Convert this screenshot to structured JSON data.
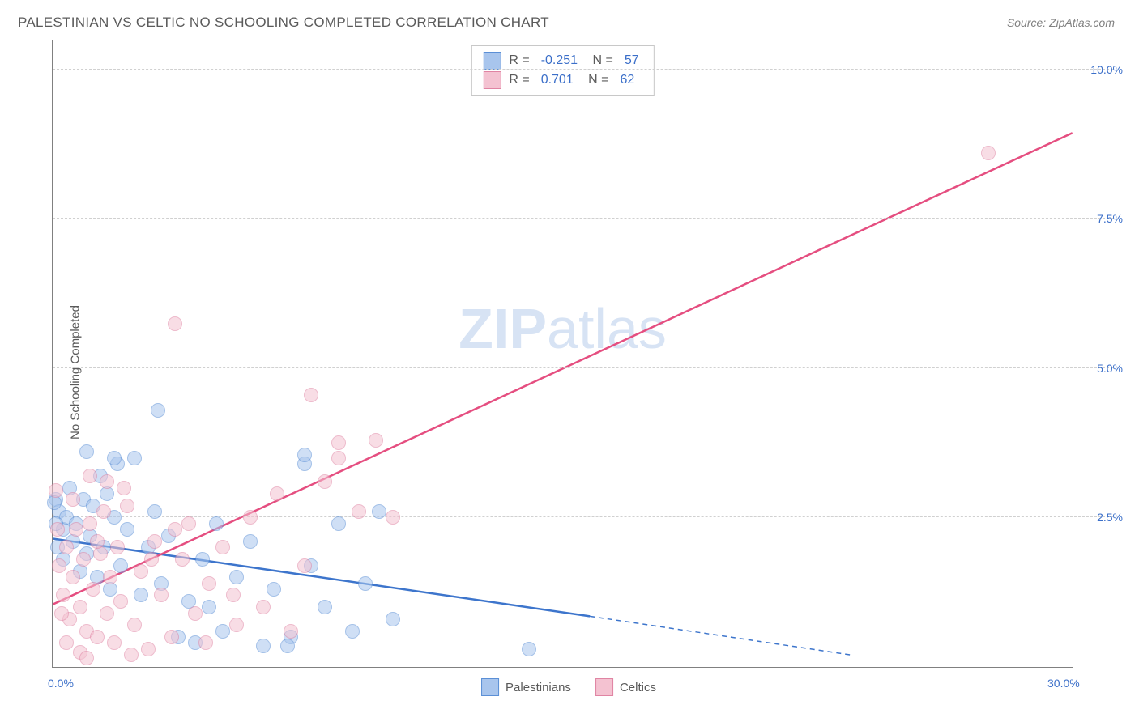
{
  "title": "PALESTINIAN VS CELTIC NO SCHOOLING COMPLETED CORRELATION CHART",
  "source": "Source: ZipAtlas.com",
  "watermark_zip": "ZIP",
  "watermark_atlas": "atlas",
  "chart": {
    "type": "scatter",
    "ylabel": "No Schooling Completed",
    "xlim": [
      0,
      30
    ],
    "ylim": [
      0,
      10.5
    ],
    "y_gridlines": [
      2.5,
      5.0,
      7.5,
      10.0
    ],
    "y_tick_labels": [
      "2.5%",
      "5.0%",
      "7.5%",
      "10.0%"
    ],
    "x_tick_values": [
      0,
      30
    ],
    "x_tick_labels": [
      "0.0%",
      "30.0%"
    ],
    "grid_color": "#d0d0d0",
    "axis_color": "#808080",
    "background_color": "#ffffff",
    "point_radius": 9,
    "point_opacity": 0.55,
    "series": [
      {
        "name": "Palestinians",
        "color_fill": "#a8c5ed",
        "color_stroke": "#5b8fd6",
        "R": "-0.251",
        "N": "57",
        "trend": {
          "x1": 0,
          "y1": 2.15,
          "x2": 15.8,
          "y2": 0.85,
          "dash_x2": 23.5,
          "dash_y2": 0.2,
          "color": "#3d75cc",
          "width": 2.5
        },
        "points": [
          [
            0.1,
            2.8
          ],
          [
            0.2,
            2.6
          ],
          [
            0.3,
            2.3
          ],
          [
            0.15,
            2.0
          ],
          [
            0.4,
            2.5
          ],
          [
            0.5,
            3.0
          ],
          [
            0.3,
            1.8
          ],
          [
            0.6,
            2.1
          ],
          [
            0.7,
            2.4
          ],
          [
            0.8,
            1.6
          ],
          [
            0.9,
            2.8
          ],
          [
            1.0,
            1.9
          ],
          [
            1.1,
            2.2
          ],
          [
            1.2,
            2.7
          ],
          [
            1.3,
            1.5
          ],
          [
            1.4,
            3.2
          ],
          [
            1.5,
            2.0
          ],
          [
            1.6,
            2.9
          ],
          [
            1.7,
            1.3
          ],
          [
            1.8,
            2.5
          ],
          [
            1.9,
            3.4
          ],
          [
            2.0,
            1.7
          ],
          [
            2.2,
            2.3
          ],
          [
            2.4,
            3.5
          ],
          [
            2.6,
            1.2
          ],
          [
            2.8,
            2.0
          ],
          [
            3.0,
            2.6
          ],
          [
            3.2,
            1.4
          ],
          [
            3.4,
            2.2
          ],
          [
            3.7,
            0.5
          ],
          [
            4.0,
            1.1
          ],
          [
            4.2,
            0.4
          ],
          [
            4.4,
            1.8
          ],
          [
            4.6,
            1.0
          ],
          [
            4.8,
            2.4
          ],
          [
            5.0,
            0.6
          ],
          [
            5.4,
            1.5
          ],
          [
            5.8,
            2.1
          ],
          [
            6.2,
            0.35
          ],
          [
            6.5,
            1.3
          ],
          [
            7.0,
            0.5
          ],
          [
            7.4,
            3.4
          ],
          [
            7.4,
            3.55
          ],
          [
            7.6,
            1.7
          ],
          [
            8.0,
            1.0
          ],
          [
            8.4,
            2.4
          ],
          [
            8.8,
            0.6
          ],
          [
            9.2,
            1.4
          ],
          [
            9.6,
            2.6
          ],
          [
            10.0,
            0.8
          ],
          [
            3.1,
            4.3
          ],
          [
            1.0,
            3.6
          ],
          [
            1.8,
            3.5
          ],
          [
            14.0,
            0.3
          ],
          [
            6.9,
            0.35
          ],
          [
            0.05,
            2.75
          ],
          [
            0.1,
            2.4
          ]
        ]
      },
      {
        "name": "Celtics",
        "color_fill": "#f4c2d1",
        "color_stroke": "#e084a3",
        "R": "0.701",
        "N": "62",
        "trend": {
          "x1": 0,
          "y1": 1.05,
          "x2": 30,
          "y2": 8.95,
          "color": "#e54e80",
          "width": 2.5
        },
        "points": [
          [
            0.2,
            1.7
          ],
          [
            0.3,
            1.2
          ],
          [
            0.4,
            2.0
          ],
          [
            0.5,
            0.8
          ],
          [
            0.6,
            1.5
          ],
          [
            0.7,
            2.3
          ],
          [
            0.8,
            1.0
          ],
          [
            0.9,
            1.8
          ],
          [
            1.0,
            0.6
          ],
          [
            1.1,
            2.4
          ],
          [
            1.2,
            1.3
          ],
          [
            1.3,
            0.5
          ],
          [
            1.4,
            1.9
          ],
          [
            1.5,
            2.6
          ],
          [
            1.6,
            0.9
          ],
          [
            1.7,
            1.5
          ],
          [
            1.8,
            0.4
          ],
          [
            1.9,
            2.0
          ],
          [
            2.0,
            1.1
          ],
          [
            2.2,
            2.7
          ],
          [
            2.4,
            0.7
          ],
          [
            2.6,
            1.6
          ],
          [
            2.8,
            0.3
          ],
          [
            3.0,
            2.1
          ],
          [
            3.2,
            1.2
          ],
          [
            3.5,
            0.5
          ],
          [
            3.8,
            1.8
          ],
          [
            4.0,
            2.4
          ],
          [
            4.2,
            0.9
          ],
          [
            4.6,
            1.4
          ],
          [
            5.0,
            2.0
          ],
          [
            5.4,
            0.7
          ],
          [
            5.8,
            2.5
          ],
          [
            6.2,
            1.0
          ],
          [
            6.6,
            2.9
          ],
          [
            7.0,
            0.6
          ],
          [
            7.4,
            1.7
          ],
          [
            8.0,
            3.1
          ],
          [
            8.4,
            3.5
          ],
          [
            9.0,
            2.6
          ],
          [
            9.5,
            3.8
          ],
          [
            10.0,
            2.5
          ],
          [
            3.6,
            5.75
          ],
          [
            7.6,
            4.55
          ],
          [
            8.4,
            3.75
          ],
          [
            27.5,
            8.6
          ],
          [
            1.1,
            3.2
          ],
          [
            2.1,
            3.0
          ],
          [
            0.1,
            2.95
          ],
          [
            0.15,
            2.3
          ],
          [
            0.25,
            0.9
          ],
          [
            0.4,
            0.4
          ],
          [
            0.6,
            2.8
          ],
          [
            0.8,
            0.25
          ],
          [
            1.0,
            0.15
          ],
          [
            1.3,
            2.1
          ],
          [
            1.6,
            3.1
          ],
          [
            2.3,
            0.2
          ],
          [
            2.9,
            1.8
          ],
          [
            3.6,
            2.3
          ],
          [
            4.5,
            0.4
          ],
          [
            5.3,
            1.2
          ]
        ]
      }
    ]
  },
  "legend_labels": {
    "r_prefix": "R =",
    "n_prefix": "N ="
  }
}
